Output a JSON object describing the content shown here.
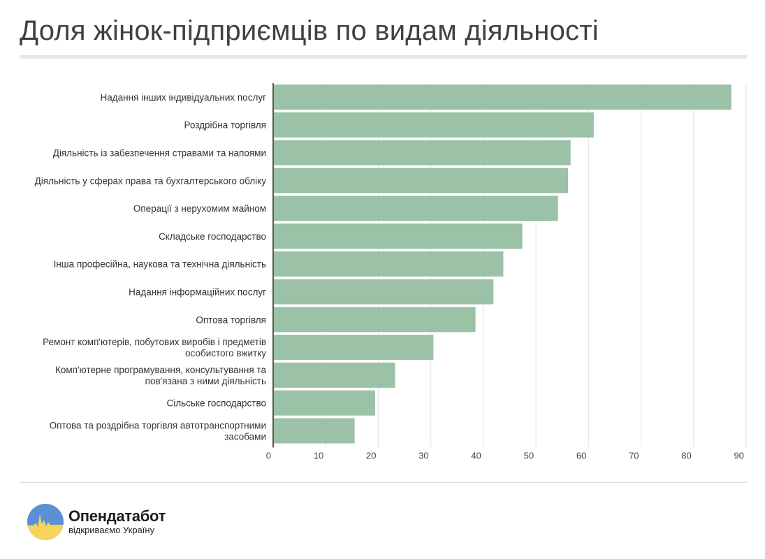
{
  "header": {
    "title": "Доля жінок-підприємців по видам діяльності"
  },
  "brand": {
    "name": "Опендатабот",
    "tagline": "відкриваємо Україну",
    "logo_icon": "ukraine-flag-sun-icon",
    "colors": {
      "blue": "#5b8fd6",
      "yellow": "#f6d35a"
    }
  },
  "chart_data": {
    "type": "bar",
    "orientation": "horizontal",
    "title": "Доля жінок-підприємців по видам діяльності",
    "xlabel": "",
    "ylabel": "",
    "xlim": [
      0,
      90
    ],
    "xticks": [
      "0",
      "10",
      "20",
      "30",
      "40",
      "50",
      "60",
      "70",
      "80",
      "90"
    ],
    "grid": true,
    "bar_color": "#9bc2a6",
    "categories": [
      [
        "Надання інших індивідуальних послуг"
      ],
      [
        "Роздрібна торгівля"
      ],
      [
        "Діяльність із забезпечення стравами та напоями"
      ],
      [
        "Діяльність у сферах права та бухгалтерського обліку"
      ],
      [
        "Операції з нерухомим майном"
      ],
      [
        "Складське господарство"
      ],
      [
        "Інша професійна, наукова та технічна діяльність"
      ],
      [
        "Надання інформаційних послуг"
      ],
      [
        "Оптова торгівля"
      ],
      [
        "Ремонт комп'ютерів, побутових виробів і предметів",
        "особистого вжитку"
      ],
      [
        "Комп'ютерне програмування, консультування та",
        "пов'язана з ними діяльність"
      ],
      [
        "Сільське господарство"
      ],
      [
        "Оптова та роздрібна торгівля автотранспортними",
        "засобами"
      ]
    ],
    "values": [
      87.2,
      61.0,
      56.6,
      56.1,
      54.2,
      47.4,
      43.8,
      41.9,
      38.5,
      30.5,
      23.2,
      19.4,
      15.5
    ]
  }
}
